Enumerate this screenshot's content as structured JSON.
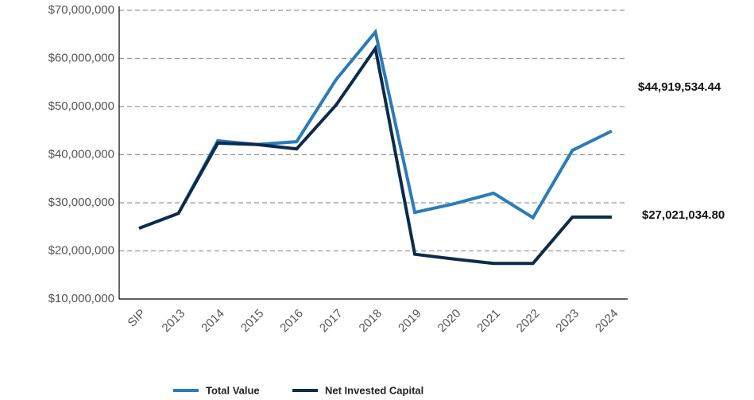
{
  "chart_data": {
    "type": "line",
    "categories": [
      "SIP",
      "2013",
      "2014",
      "2015",
      "2016",
      "2017",
      "2018",
      "2019",
      "2020",
      "2021",
      "2022",
      "2023",
      "2024"
    ],
    "series": [
      {
        "name": "Total Value",
        "color": "#2b7bb9",
        "values": [
          24700000,
          27800000,
          42900000,
          42100000,
          42700000,
          55600000,
          65500000,
          28000000,
          29800000,
          32000000,
          26900000,
          40900000,
          44919534.44
        ],
        "value_label": "$44,919,534.44"
      },
      {
        "name": "Net Invested Capital",
        "color": "#0d2b4a",
        "values": [
          24700000,
          27800000,
          42400000,
          42100000,
          41200000,
          50300000,
          62100000,
          19300000,
          18300000,
          17400000,
          17400000,
          27021034.8,
          27021034.8
        ],
        "value_label": "$27,021,034.80"
      }
    ],
    "ylim": [
      10000000,
      70000000
    ],
    "yticks": [
      {
        "value": 10000000,
        "label": "$10,000,000"
      },
      {
        "value": 20000000,
        "label": "$20,000,000"
      },
      {
        "value": 30000000,
        "label": "$30,000,000"
      },
      {
        "value": 40000000,
        "label": "$40,000,000"
      },
      {
        "value": 50000000,
        "label": "$50,000,000"
      },
      {
        "value": 60000000,
        "label": "$60,000,000"
      },
      {
        "value": 70000000,
        "label": "$70,000,000"
      }
    ],
    "grid": true,
    "legend": "bottom"
  }
}
